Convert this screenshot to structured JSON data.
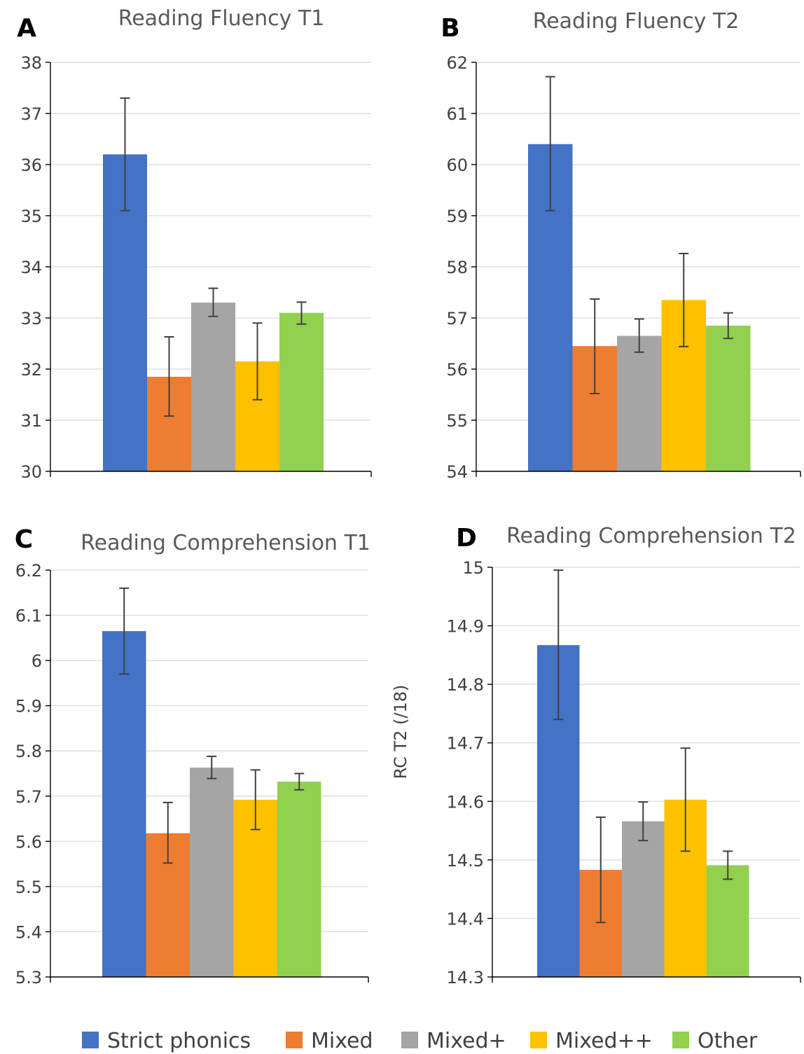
{
  "legend": [
    {
      "label": "Strict phonics",
      "color": "#4472C4"
    },
    {
      "label": "Mixed",
      "color": "#ED7D31"
    },
    {
      "label": "Mixed+",
      "color": "#A5A5A5"
    },
    {
      "label": "Mixed++",
      "color": "#FFC000"
    },
    {
      "label": "Other",
      "color": "#92D050"
    }
  ],
  "chart_data": [
    {
      "panel": "A",
      "type": "bar",
      "title": "Reading Fluency T1",
      "ylabel": "",
      "ylim": [
        30,
        38
      ],
      "yticks": [
        "30",
        "31",
        "32",
        "33",
        "34",
        "35",
        "36",
        "37",
        "38"
      ],
      "grid": true,
      "series": [
        {
          "name": "Strict phonics",
          "value": 36.2,
          "error": [
            35.1,
            37.3
          ]
        },
        {
          "name": "Mixed",
          "value": 31.85,
          "error": [
            31.08,
            32.63
          ]
        },
        {
          "name": "Mixed+",
          "value": 33.3,
          "error": [
            33.03,
            33.58
          ]
        },
        {
          "name": "Mixed++",
          "value": 32.15,
          "error": [
            31.4,
            32.9
          ]
        },
        {
          "name": "Other",
          "value": 33.1,
          "error": [
            32.88,
            33.31
          ]
        }
      ]
    },
    {
      "panel": "B",
      "type": "bar",
      "title": "Reading Fluency T2",
      "ylabel": "",
      "ylim": [
        54,
        62
      ],
      "yticks": [
        "54",
        "55",
        "56",
        "57",
        "58",
        "59",
        "60",
        "61",
        "62"
      ],
      "grid": true,
      "series": [
        {
          "name": "Strict phonics",
          "value": 60.4,
          "error": [
            59.1,
            61.72
          ]
        },
        {
          "name": "Mixed",
          "value": 56.45,
          "error": [
            55.52,
            57.37
          ]
        },
        {
          "name": "Mixed+",
          "value": 56.65,
          "error": [
            56.33,
            56.98
          ]
        },
        {
          "name": "Mixed++",
          "value": 57.35,
          "error": [
            56.44,
            58.26
          ]
        },
        {
          "name": "Other",
          "value": 56.85,
          "error": [
            56.6,
            57.1
          ]
        }
      ]
    },
    {
      "panel": "C",
      "type": "bar",
      "title": "Reading Comprehension T1",
      "ylabel": "",
      "ylim": [
        5.3,
        6.2
      ],
      "yticks": [
        "5.3",
        "5.4",
        "5.5",
        "5.6",
        "5.7",
        "5.8",
        "5.9",
        "6",
        "6.1",
        "6.2"
      ],
      "grid": true,
      "series": [
        {
          "name": "Strict phonics",
          "value": 6.065,
          "error": [
            5.97,
            6.16
          ]
        },
        {
          "name": "Mixed",
          "value": 5.618,
          "error": [
            5.552,
            5.686
          ]
        },
        {
          "name": "Mixed+",
          "value": 5.763,
          "error": [
            5.739,
            5.788
          ]
        },
        {
          "name": "Mixed++",
          "value": 5.692,
          "error": [
            5.626,
            5.758
          ]
        },
        {
          "name": "Other",
          "value": 5.732,
          "error": [
            5.714,
            5.75
          ]
        }
      ]
    },
    {
      "panel": "D",
      "type": "bar",
      "title": "Reading Comprehension T2",
      "ylabel": "RC T2 (/18)",
      "ylim": [
        14.3,
        15.0
      ],
      "yticks": [
        "14.3",
        "14.4",
        "14.5",
        "14.6",
        "14.7",
        "14.8",
        "14.9",
        "15"
      ],
      "grid": true,
      "series": [
        {
          "name": "Strict phonics",
          "value": 14.867,
          "error": [
            14.74,
            14.995
          ]
        },
        {
          "name": "Mixed",
          "value": 14.483,
          "error": [
            14.393,
            14.573
          ]
        },
        {
          "name": "Mixed+",
          "value": 14.566,
          "error": [
            14.533,
            14.599
          ]
        },
        {
          "name": "Mixed++",
          "value": 14.603,
          "error": [
            14.515,
            14.691
          ]
        },
        {
          "name": "Other",
          "value": 14.491,
          "error": [
            14.467,
            14.515
          ]
        }
      ]
    }
  ]
}
